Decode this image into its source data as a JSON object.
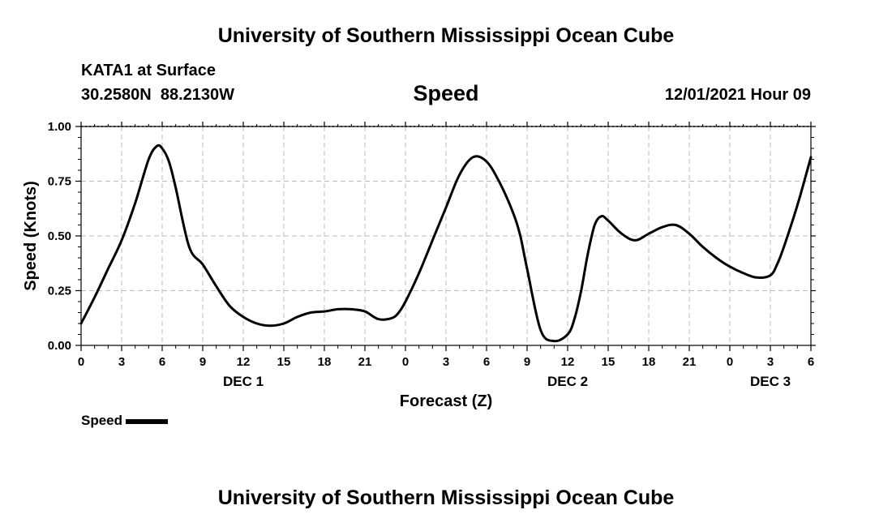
{
  "header": {
    "title_top": "University of Southern Mississippi Ocean Cube",
    "station": "KATA1 at Surface",
    "coords": "30.2580N  88.2130W",
    "variable": "Speed",
    "datetime": "12/01/2021 Hour 09",
    "title_bottom": "University of Southern Mississippi Ocean Cube"
  },
  "legend": {
    "label": "Speed"
  },
  "chart_data": {
    "type": "line",
    "title": "Speed",
    "xlabel": "Forecast (Z)",
    "ylabel": "Speed (Knots)",
    "ylim": [
      0,
      1.0
    ],
    "xlim": [
      0,
      54
    ],
    "yticks": [
      "0.00",
      "0.25",
      "0.50",
      "0.75",
      "1.00"
    ],
    "xticks": [
      "0",
      "3",
      "6",
      "9",
      "12",
      "15",
      "18",
      "21",
      "0",
      "3",
      "6",
      "9",
      "12",
      "15",
      "18",
      "21",
      "0",
      "3",
      "6"
    ],
    "day_labels": [
      {
        "label": "DEC 1",
        "x": 12
      },
      {
        "label": "DEC 2",
        "x": 36
      },
      {
        "label": "DEC 3",
        "x": 51
      }
    ],
    "grid": true,
    "series": [
      {
        "name": "Speed",
        "color": "#000000",
        "x": [
          0,
          1,
          2,
          3,
          4,
          5,
          5.6,
          6,
          6.5,
          7,
          8,
          9,
          10,
          11,
          12,
          13,
          14,
          15,
          16,
          17,
          18,
          19,
          20,
          21,
          22,
          23,
          23.5,
          24,
          25,
          26,
          27,
          28,
          29,
          30,
          31,
          32,
          32.5,
          33,
          34,
          35,
          36,
          36.5,
          37,
          37.5,
          38,
          38.5,
          39,
          40,
          41,
          42,
          43,
          44,
          45,
          46,
          47,
          48,
          49,
          50,
          51,
          51.5,
          52,
          53,
          54
        ],
        "y": [
          0.1,
          0.22,
          0.35,
          0.48,
          0.65,
          0.85,
          0.91,
          0.9,
          0.84,
          0.72,
          0.45,
          0.37,
          0.27,
          0.18,
          0.13,
          0.1,
          0.09,
          0.1,
          0.13,
          0.15,
          0.155,
          0.165,
          0.165,
          0.155,
          0.12,
          0.125,
          0.15,
          0.2,
          0.33,
          0.48,
          0.63,
          0.78,
          0.86,
          0.84,
          0.74,
          0.6,
          0.5,
          0.35,
          0.07,
          0.02,
          0.05,
          0.12,
          0.25,
          0.42,
          0.55,
          0.59,
          0.57,
          0.51,
          0.48,
          0.51,
          0.54,
          0.55,
          0.51,
          0.45,
          0.4,
          0.36,
          0.33,
          0.31,
          0.32,
          0.37,
          0.45,
          0.64,
          0.86
        ]
      }
    ]
  }
}
